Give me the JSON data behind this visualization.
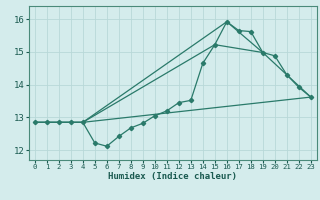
{
  "xlabel": "Humidex (Indice chaleur)",
  "background_color": "#d4ecec",
  "grid_color": "#b8d8d8",
  "line_color": "#2a7a6a",
  "xlim": [
    -0.5,
    23.5
  ],
  "ylim": [
    11.7,
    16.4
  ],
  "yticks": [
    12,
    13,
    14,
    15,
    16
  ],
  "xticks": [
    0,
    1,
    2,
    3,
    4,
    5,
    6,
    7,
    8,
    9,
    10,
    11,
    12,
    13,
    14,
    15,
    16,
    17,
    18,
    19,
    20,
    21,
    22,
    23
  ],
  "series1_x": [
    0,
    1,
    2,
    3,
    4,
    5,
    6,
    7,
    8,
    9,
    10,
    11,
    12,
    13,
    14,
    15,
    16,
    17,
    18,
    19,
    20,
    21,
    22,
    23
  ],
  "series1_y": [
    12.85,
    12.85,
    12.85,
    12.85,
    12.85,
    12.22,
    12.12,
    12.42,
    12.68,
    12.82,
    13.05,
    13.2,
    13.45,
    13.52,
    14.65,
    15.22,
    15.92,
    15.65,
    15.62,
    14.98,
    14.88,
    14.3,
    13.92,
    13.62
  ],
  "series2_x": [
    0,
    4,
    23
  ],
  "series2_y": [
    12.85,
    12.85,
    13.62
  ],
  "series3_x": [
    0,
    4,
    15,
    19,
    23
  ],
  "series3_y": [
    12.85,
    12.85,
    15.22,
    14.98,
    13.62
  ],
  "series4_x": [
    4,
    16,
    19
  ],
  "series4_y": [
    12.85,
    15.92,
    14.98
  ]
}
